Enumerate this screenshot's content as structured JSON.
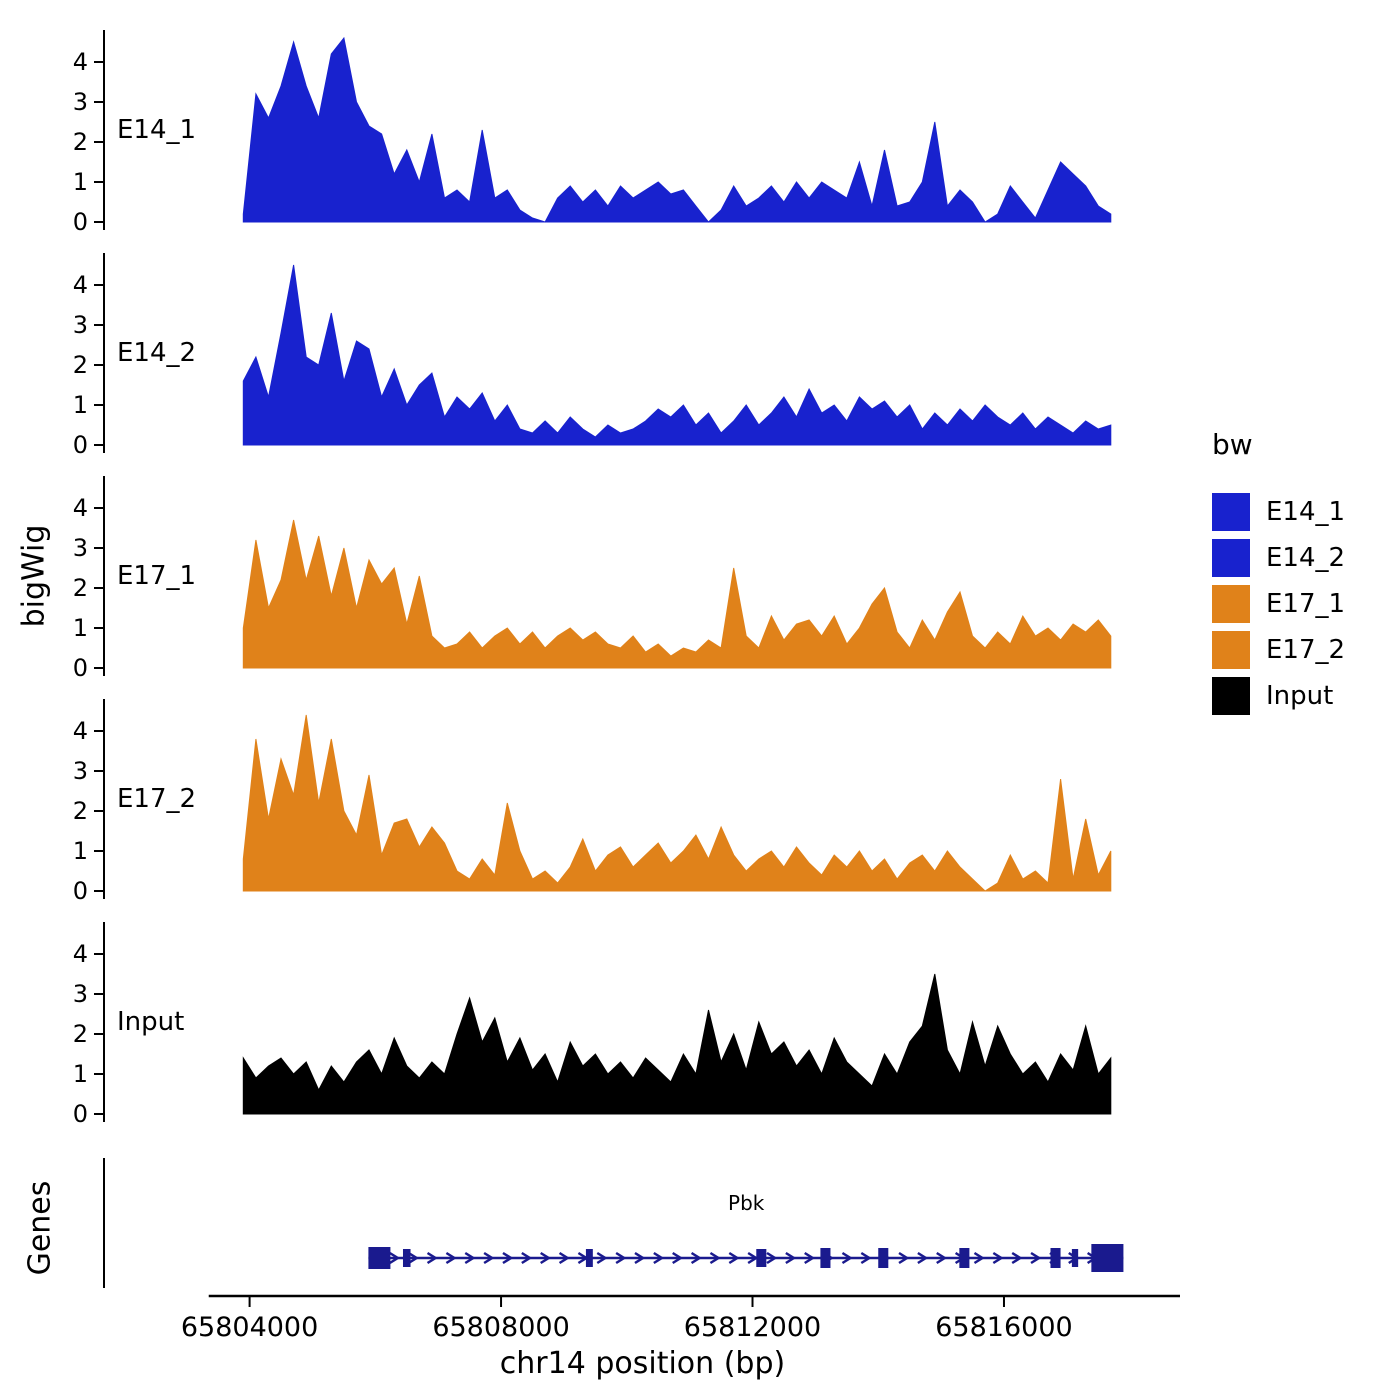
{
  "labels": {
    "y_axis": "bigWig",
    "x_axis": "chr14 position (bp)",
    "genes": "Genes"
  },
  "legend": {
    "title": "bw",
    "entries": [
      {
        "label": "E14_1",
        "color": "#1822CE"
      },
      {
        "label": "E14_2",
        "color": "#1822CE"
      },
      {
        "label": "E17_1",
        "color": "#E0821A"
      },
      {
        "label": "E17_2",
        "color": "#E0821A"
      },
      {
        "label": "Input",
        "color": "#000000"
      }
    ]
  },
  "chart_data": {
    "type": "area",
    "title": "",
    "xlabel": "chr14 position (bp)",
    "ylabel": "bigWig",
    "x_domain": [
      65801700,
      65818800
    ],
    "x_ticks": [
      65804000,
      65808000,
      65812000,
      65816000
    ],
    "y_ticks": [
      0,
      1,
      2,
      3,
      4
    ],
    "ylim": [
      0,
      4.8
    ],
    "x_start": 65803900,
    "x_step": 200,
    "series": [
      {
        "name": "E14_1",
        "color": "#1822CE",
        "values": [
          0.2,
          3.2,
          2.6,
          3.4,
          4.5,
          3.4,
          2.6,
          4.2,
          4.6,
          3.0,
          2.4,
          2.2,
          1.2,
          1.8,
          1.0,
          2.2,
          0.6,
          0.8,
          0.5,
          2.3,
          0.6,
          0.8,
          0.3,
          0.1,
          0.0,
          0.6,
          0.9,
          0.5,
          0.8,
          0.4,
          0.9,
          0.6,
          0.8,
          1.0,
          0.7,
          0.8,
          0.4,
          0.0,
          0.3,
          0.9,
          0.4,
          0.6,
          0.9,
          0.5,
          1.0,
          0.6,
          1.0,
          0.8,
          0.6,
          1.5,
          0.4,
          1.8,
          0.4,
          0.5,
          1.0,
          2.5,
          0.4,
          0.8,
          0.5,
          0.0,
          0.2,
          0.9,
          0.5,
          0.1,
          0.8,
          1.5,
          1.2,
          0.9,
          0.4,
          0.2
        ]
      },
      {
        "name": "E14_2",
        "color": "#1822CE",
        "values": [
          1.6,
          2.2,
          1.2,
          2.8,
          4.5,
          2.2,
          2.0,
          3.3,
          1.6,
          2.6,
          2.4,
          1.2,
          1.9,
          1.0,
          1.5,
          1.8,
          0.7,
          1.2,
          0.9,
          1.3,
          0.6,
          1.0,
          0.4,
          0.3,
          0.6,
          0.3,
          0.7,
          0.4,
          0.2,
          0.5,
          0.3,
          0.4,
          0.6,
          0.9,
          0.7,
          1.0,
          0.5,
          0.8,
          0.3,
          0.6,
          1.0,
          0.5,
          0.8,
          1.2,
          0.7,
          1.4,
          0.8,
          1.0,
          0.6,
          1.2,
          0.9,
          1.1,
          0.7,
          1.0,
          0.4,
          0.8,
          0.5,
          0.9,
          0.6,
          1.0,
          0.7,
          0.5,
          0.8,
          0.4,
          0.7,
          0.5,
          0.3,
          0.6,
          0.4,
          0.5
        ]
      },
      {
        "name": "E17_1",
        "color": "#E0821A",
        "values": [
          1.0,
          3.2,
          1.5,
          2.2,
          3.7,
          2.2,
          3.3,
          1.8,
          3.0,
          1.5,
          2.7,
          2.1,
          2.5,
          1.1,
          2.3,
          0.8,
          0.5,
          0.6,
          0.9,
          0.5,
          0.8,
          1.0,
          0.6,
          0.9,
          0.5,
          0.8,
          1.0,
          0.7,
          0.9,
          0.6,
          0.5,
          0.8,
          0.4,
          0.6,
          0.3,
          0.5,
          0.4,
          0.7,
          0.5,
          2.5,
          0.8,
          0.5,
          1.3,
          0.7,
          1.1,
          1.2,
          0.8,
          1.3,
          0.6,
          1.0,
          1.6,
          2.0,
          0.9,
          0.5,
          1.2,
          0.7,
          1.4,
          1.9,
          0.8,
          0.5,
          0.9,
          0.6,
          1.3,
          0.8,
          1.0,
          0.7,
          1.1,
          0.9,
          1.2,
          0.8
        ]
      },
      {
        "name": "E17_2",
        "color": "#E0821A",
        "values": [
          0.8,
          3.8,
          1.8,
          3.3,
          2.4,
          4.4,
          2.2,
          3.8,
          2.0,
          1.4,
          2.9,
          0.9,
          1.7,
          1.8,
          1.1,
          1.6,
          1.2,
          0.5,
          0.3,
          0.8,
          0.4,
          2.2,
          1.0,
          0.3,
          0.5,
          0.2,
          0.6,
          1.3,
          0.5,
          0.9,
          1.1,
          0.6,
          0.9,
          1.2,
          0.7,
          1.0,
          1.4,
          0.8,
          1.6,
          0.9,
          0.5,
          0.8,
          1.0,
          0.6,
          1.1,
          0.7,
          0.4,
          0.9,
          0.6,
          1.0,
          0.5,
          0.8,
          0.3,
          0.7,
          0.9,
          0.5,
          1.0,
          0.6,
          0.3,
          0.0,
          0.2,
          0.9,
          0.3,
          0.5,
          0.2,
          2.8,
          0.3,
          1.8,
          0.4,
          1.0
        ]
      },
      {
        "name": "Input",
        "color": "#000000",
        "values": [
          1.4,
          0.9,
          1.2,
          1.4,
          1.0,
          1.3,
          0.6,
          1.2,
          0.8,
          1.3,
          1.6,
          1.0,
          1.9,
          1.2,
          0.9,
          1.3,
          1.0,
          2.0,
          2.9,
          1.8,
          2.4,
          1.3,
          1.9,
          1.1,
          1.5,
          0.8,
          1.8,
          1.2,
          1.5,
          1.0,
          1.3,
          0.9,
          1.4,
          1.1,
          0.8,
          1.5,
          1.0,
          2.6,
          1.3,
          2.0,
          1.1,
          2.3,
          1.5,
          1.8,
          1.2,
          1.6,
          1.0,
          1.9,
          1.3,
          1.0,
          0.7,
          1.5,
          1.0,
          1.8,
          2.2,
          3.5,
          1.6,
          1.0,
          2.3,
          1.2,
          2.2,
          1.5,
          1.0,
          1.3,
          0.8,
          1.5,
          1.1,
          2.2,
          1.0,
          1.4
        ]
      }
    ],
    "gene": {
      "name": "Pbk",
      "strand": "+",
      "start": 65805890,
      "end": 65817900,
      "label_pos": 65811900,
      "color": "#1A1A8E",
      "exons": [
        [
          65805890,
          65806240,
          22
        ],
        [
          65806440,
          65806560,
          18
        ],
        [
          65809350,
          65809460,
          18
        ],
        [
          65812060,
          65812220,
          18
        ],
        [
          65813080,
          65813240,
          20
        ],
        [
          65814000,
          65814160,
          20
        ],
        [
          65815290,
          65815450,
          20
        ],
        [
          65816740,
          65816900,
          20
        ],
        [
          65817080,
          65817180,
          18
        ],
        [
          65817390,
          65817900,
          28
        ]
      ]
    }
  }
}
